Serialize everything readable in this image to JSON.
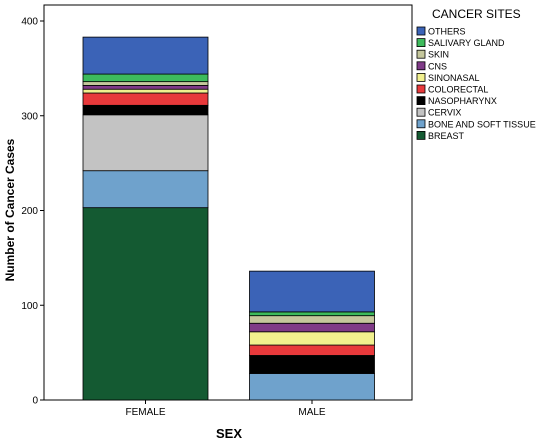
{
  "chart_data": {
    "type": "bar",
    "stacked": true,
    "categories": [
      "FEMALE",
      "MALE"
    ],
    "xlabel": "SEX",
    "ylabel": "Number of Cancer Cases",
    "ylim": [
      0,
      400
    ],
    "yticks": [
      0,
      100,
      200,
      300,
      400
    ],
    "legend_title": "CANCER SITES",
    "legend_position": "right",
    "grid": false,
    "series": [
      {
        "name": "BREAST",
        "color": "#145a32",
        "values": [
          203,
          0
        ]
      },
      {
        "name": "BONE AND SOFT TISSUE",
        "color": "#6fa2cc",
        "values": [
          39,
          28
        ]
      },
      {
        "name": "CERVIX",
        "color": "#c3c3c3",
        "values": [
          59,
          0
        ]
      },
      {
        "name": "NASOPHARYNX",
        "color": "#000000",
        "values": [
          10,
          19
        ]
      },
      {
        "name": "COLORECTAL",
        "color": "#e8393b",
        "values": [
          13,
          11
        ]
      },
      {
        "name": "SINONASAL",
        "color": "#f1f08e",
        "values": [
          4,
          14
        ]
      },
      {
        "name": "CNS",
        "color": "#7f3a87",
        "values": [
          4,
          9
        ]
      },
      {
        "name": "SKIN",
        "color": "#c5c79c",
        "values": [
          4,
          8
        ]
      },
      {
        "name": "SALIVARY GLAND",
        "color": "#3dbb5c",
        "values": [
          8,
          4
        ]
      },
      {
        "name": "OTHERS",
        "color": "#3b63b7",
        "values": [
          39,
          43
        ]
      }
    ]
  }
}
